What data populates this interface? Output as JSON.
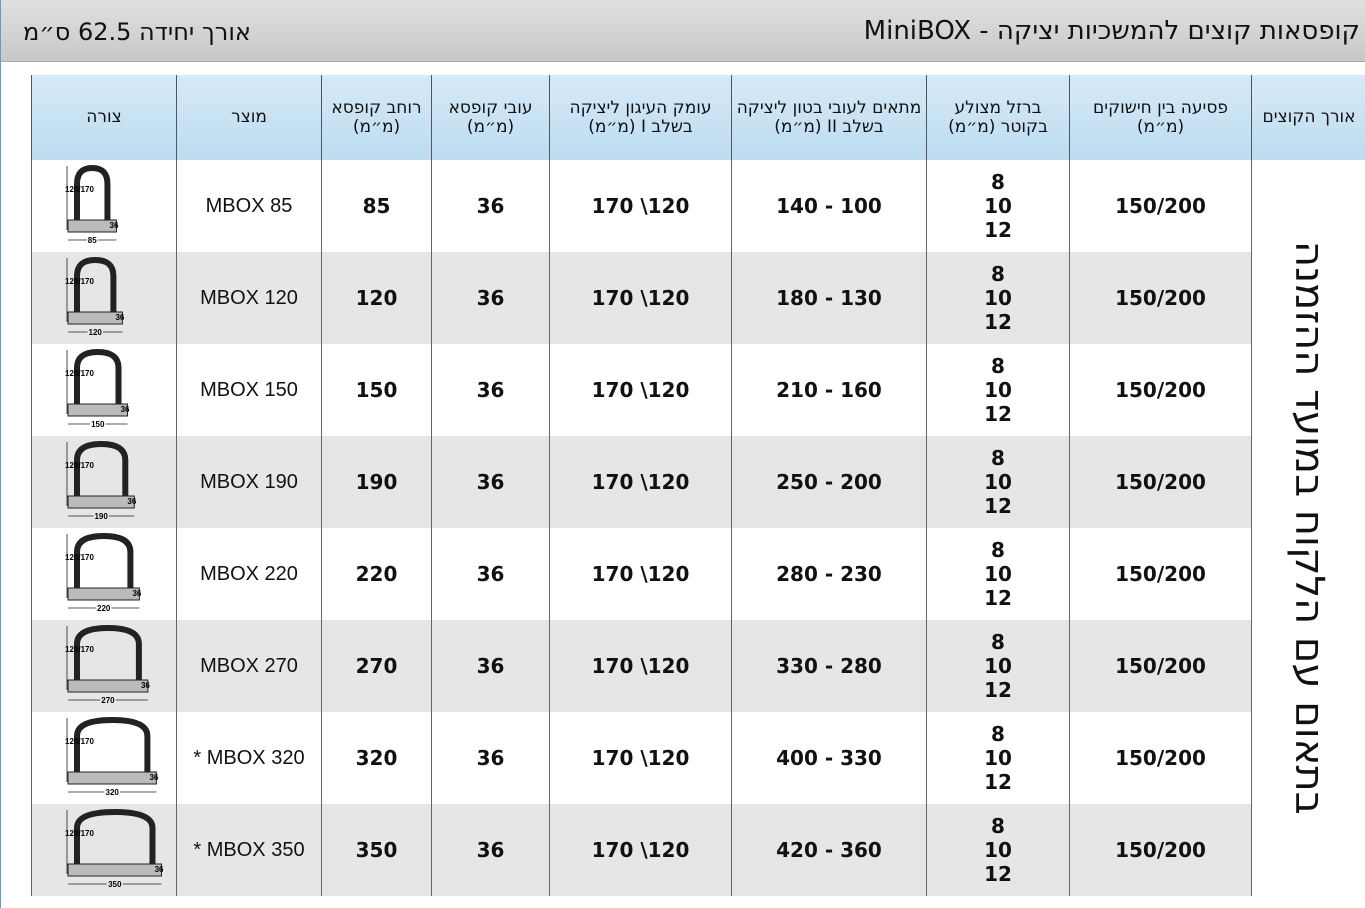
{
  "header": {
    "title": "קופסאות קוצים להמשכיות יציקה - MiniBOX",
    "unit_length": "אורך יחידה 62.5 ס״מ"
  },
  "table": {
    "columns": [
      "צורה",
      "מוצר",
      "רוחב קופסא (מ״מ)",
      "עובי קופסא (מ״מ)",
      "עומק העיגון ליציקה בשלב I (מ״מ)",
      "מתאים לעובי בטון ליציקה בשלב II (מ״מ)",
      "ברזל מצולע בקוטר (מ״מ)",
      "פסיעה בין חישוקים (מ״מ)",
      "אורך הקוצים"
    ],
    "rebar_length_note": "בתאום עם הלקוח במועד ההזמנה",
    "rows": [
      {
        "shape": {
          "height": "120/170",
          "thickness": "36",
          "width": "85"
        },
        "product": "MBOX 85",
        "box_width": 85,
        "box_thickness": 36,
        "depth": "170 \\120",
        "concrete": "140 - 100",
        "rebar": [
          8,
          10,
          12
        ],
        "spacing": "150/200"
      },
      {
        "shape": {
          "height": "120/170",
          "thickness": "36",
          "width": "120"
        },
        "product": "MBOX 120",
        "box_width": 120,
        "box_thickness": 36,
        "depth": "170 \\120",
        "concrete": "180 - 130",
        "rebar": [
          8,
          10,
          12
        ],
        "spacing": "150/200"
      },
      {
        "shape": {
          "height": "120/170",
          "thickness": "36",
          "width": "150"
        },
        "product": "MBOX 150",
        "box_width": 150,
        "box_thickness": 36,
        "depth": "170 \\120",
        "concrete": "210 - 160",
        "rebar": [
          8,
          10,
          12
        ],
        "spacing": "150/200"
      },
      {
        "shape": {
          "height": "120/170",
          "thickness": "36",
          "width": "190"
        },
        "product": "MBOX 190",
        "box_width": 190,
        "box_thickness": 36,
        "depth": "170 \\120",
        "concrete": "250 - 200",
        "rebar": [
          8,
          10,
          12
        ],
        "spacing": "150/200"
      },
      {
        "shape": {
          "height": "120/170",
          "thickness": "36",
          "width": "220"
        },
        "product": "MBOX 220",
        "box_width": 220,
        "box_thickness": 36,
        "depth": "170 \\120",
        "concrete": "280 - 230",
        "rebar": [
          8,
          10,
          12
        ],
        "spacing": "150/200"
      },
      {
        "shape": {
          "height": "120/170",
          "thickness": "36",
          "width": "270"
        },
        "product": "MBOX 270",
        "box_width": 270,
        "box_thickness": 36,
        "depth": "170 \\120",
        "concrete": "330 - 280",
        "rebar": [
          8,
          10,
          12
        ],
        "spacing": "150/200"
      },
      {
        "shape": {
          "height": "120/170",
          "thickness": "36",
          "width": "320"
        },
        "product": "* MBOX 320",
        "box_width": 320,
        "box_thickness": 36,
        "depth": "170 \\120",
        "concrete": "400 - 330",
        "rebar": [
          8,
          10,
          12
        ],
        "spacing": "150/200"
      },
      {
        "shape": {
          "height": "120/170",
          "thickness": "36",
          "width": "350"
        },
        "product": "* MBOX 350",
        "box_width": 350,
        "box_thickness": 36,
        "depth": "170 \\120",
        "concrete": "420 - 360",
        "rebar": [
          8,
          10,
          12
        ],
        "spacing": "150/200"
      }
    ]
  }
}
